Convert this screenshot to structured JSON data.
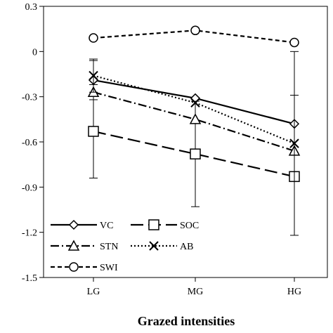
{
  "chart_data": {
    "type": "line",
    "categories": [
      "LG",
      "MG",
      "HG"
    ],
    "xlabel": "Grazed intensities",
    "ylabel": "",
    "ylim": [
      -1.5,
      0.3
    ],
    "yticks": [
      0.3,
      0,
      -0.3,
      -0.6,
      -0.9,
      -1.2,
      -1.5
    ],
    "ytick_labels": [
      "0.3",
      "0",
      "-0.3",
      "-0.6",
      "-0.9",
      "-1.2",
      "-1.5"
    ],
    "grid": false,
    "legend_position": "bottom-left",
    "series": [
      {
        "name": "VC",
        "marker": "diamond",
        "dash": "solid",
        "values": [
          -0.19,
          -0.31,
          -0.48
        ],
        "errors": [
          0.13,
          0.0,
          0.19
        ]
      },
      {
        "name": "SOC",
        "marker": "square",
        "dash": "long-dash",
        "values": [
          -0.53,
          -0.68,
          -0.83
        ],
        "errors": [
          0.31,
          0.35,
          0.0
        ]
      },
      {
        "name": "STN",
        "marker": "triangle",
        "dash": "dash-dot",
        "values": [
          -0.27,
          -0.45,
          -0.66
        ],
        "errors": [
          0.0,
          0.0,
          0.0
        ]
      },
      {
        "name": "AB",
        "marker": "x",
        "dash": "dotted",
        "values": [
          -0.16,
          -0.34,
          -0.61
        ],
        "errors": [
          0.11,
          0.0,
          0.61
        ]
      },
      {
        "name": "SWI",
        "marker": "circle",
        "dash": "short-dash",
        "values": [
          0.09,
          0.14,
          0.06
        ],
        "errors": [
          0.0,
          0.0,
          0.0
        ]
      }
    ]
  }
}
